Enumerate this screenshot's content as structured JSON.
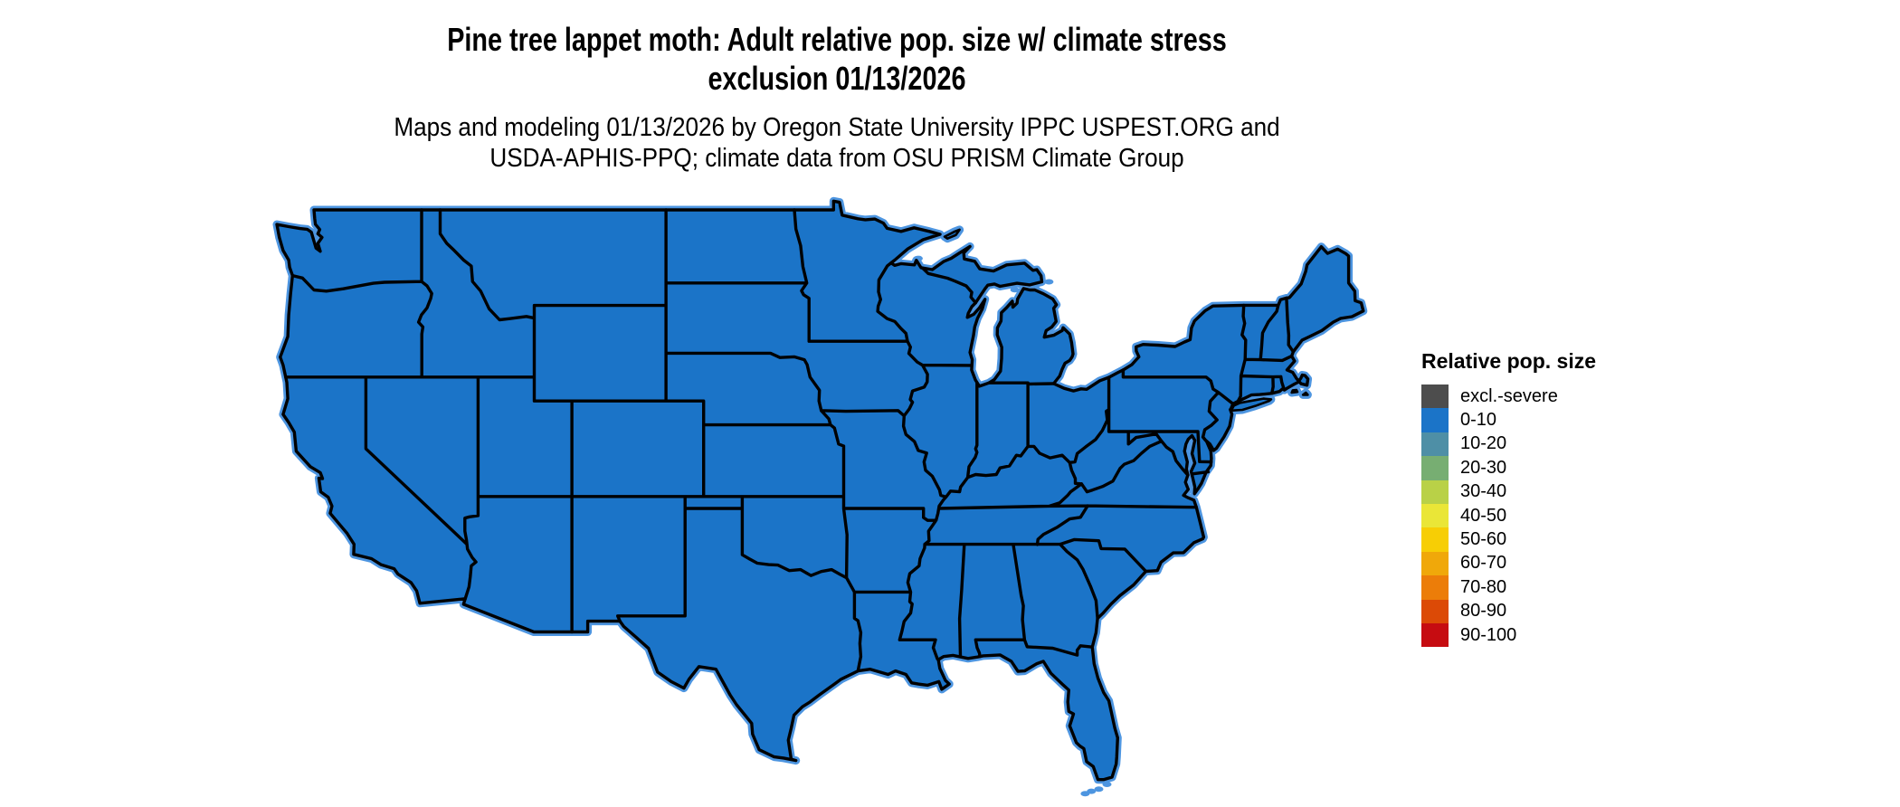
{
  "figure": {
    "title_line1": "Pine tree lappet moth: Adult relative pop. size w/ climate stress",
    "title_line2": "exclusion 01/13/2026",
    "subtitle_line1": "Maps and modeling 01/13/2026 by Oregon State University IPPC USPEST.ORG and",
    "subtitle_line2": "USDA-APHIS-PPQ; climate data from OSU PRISM Climate Group"
  },
  "legend": {
    "title": "Relative pop. size",
    "items": [
      {
        "label": "excl.-severe",
        "color": "#4D4D4D"
      },
      {
        "label": "0-10",
        "color": "#1B74C8"
      },
      {
        "label": "10-20",
        "color": "#4E8FA6"
      },
      {
        "label": "20-30",
        "color": "#77AE72"
      },
      {
        "label": "30-40",
        "color": "#B9D147"
      },
      {
        "label": "40-50",
        "color": "#EAE637"
      },
      {
        "label": "50-60",
        "color": "#F7CE05"
      },
      {
        "label": "60-70",
        "color": "#F0A80A"
      },
      {
        "label": "70-80",
        "color": "#EC7D09"
      },
      {
        "label": "80-90",
        "color": "#DC4A06"
      },
      {
        "label": "90-100",
        "color": "#C60C11"
      }
    ]
  },
  "map": {
    "region": "Contiguous United States",
    "fill_category": "0-10",
    "fill_color": "#1B74C8",
    "border_color": "#000000",
    "coastal_fringe_color": "#4D95E0",
    "background_color": "#FFFFFF"
  },
  "chart_data": {
    "type": "choropleth",
    "title": "Pine tree lappet moth: Adult relative pop. size w/ climate stress exclusion 01/13/2026",
    "subtitle": "Maps and modeling 01/13/2026 by Oregon State University IPPC USPEST.ORG and USDA-APHIS-PPQ; climate data from OSU PRISM Climate Group",
    "legend_title": "Relative pop. size",
    "legend_position": "right",
    "categories": [
      "excl.-severe",
      "0-10",
      "10-20",
      "20-30",
      "30-40",
      "40-50",
      "50-60",
      "60-70",
      "70-80",
      "80-90",
      "90-100"
    ],
    "colors": [
      "#4D4D4D",
      "#1B74C8",
      "#4E8FA6",
      "#77AE72",
      "#B9D147",
      "#EAE637",
      "#F7CE05",
      "#F0A80A",
      "#EC7D09",
      "#DC4A06",
      "#C60C11"
    ],
    "observed": "Entire contiguous US map is shaded in the 0-10 class"
  }
}
